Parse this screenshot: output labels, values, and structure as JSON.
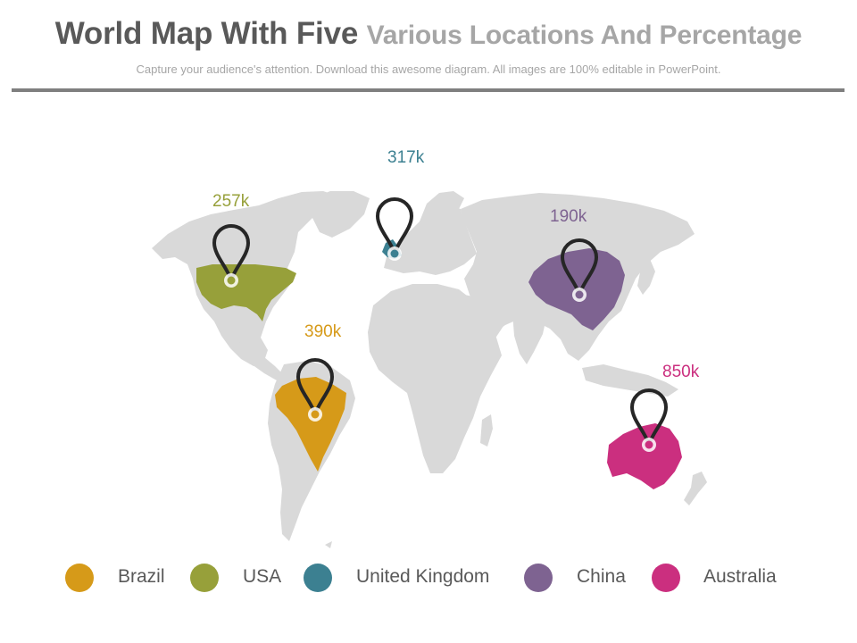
{
  "header": {
    "title_main": "World Map With Five",
    "title_rest": "Various Locations And Percentage",
    "subtitle": "Capture your audience's attention. Download this awesome diagram. All images are 100% editable in PowerPoint."
  },
  "locations": [
    {
      "key": "brazil",
      "name": "Brazil",
      "value": "390k",
      "color": "#d69a19"
    },
    {
      "key": "usa",
      "name": "USA",
      "value": "257k",
      "color": "#97a03a"
    },
    {
      "key": "uk",
      "name": "United Kingdom",
      "value": "317k",
      "color": "#3c8091"
    },
    {
      "key": "china",
      "name": "China",
      "value": "190k",
      "color": "#7e6391"
    },
    {
      "key": "australia",
      "name": "Australia",
      "value": "850k",
      "color": "#cb2f7f"
    }
  ],
  "land_color": "#d9d9d9",
  "pin_color": "#262626",
  "icons": {
    "pin": "map-pin-icon"
  }
}
